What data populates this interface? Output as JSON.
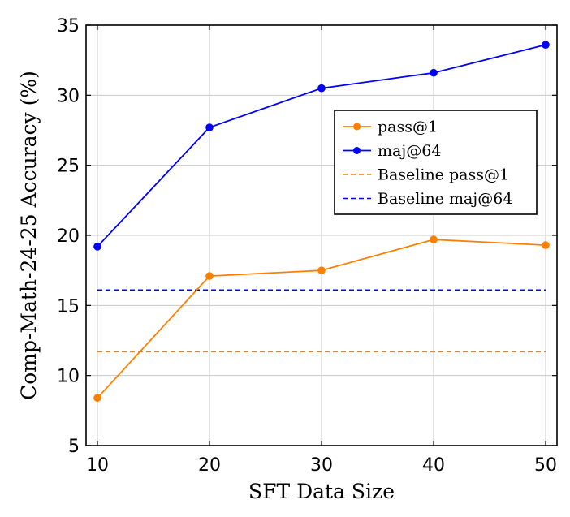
{
  "chart_data": {
    "type": "line",
    "xlabel": "SFT Data Size",
    "ylabel": "Comp-Math-24-25 Accuracy (%)",
    "xlim": [
      10,
      50
    ],
    "ylim": [
      5,
      35
    ],
    "xticks": [
      10,
      20,
      30,
      40,
      50
    ],
    "yticks": [
      5,
      10,
      15,
      20,
      25,
      30,
      35
    ],
    "grid": true,
    "legend_position": "upper-right",
    "x": [
      10,
      20,
      30,
      40,
      50
    ],
    "series": [
      {
        "name": "pass@1",
        "values": [
          8.4,
          17.1,
          17.5,
          19.7,
          19.3
        ],
        "color": "#ff8000",
        "style": "solid-marker"
      },
      {
        "name": "maj@64",
        "values": [
          19.2,
          27.7,
          30.5,
          31.6,
          33.6
        ],
        "color": "#0000ff",
        "style": "solid-marker"
      },
      {
        "name": "Baseline pass@1",
        "value": 11.7,
        "color": "#ff8000",
        "style": "dashed"
      },
      {
        "name": "Baseline maj@64",
        "value": 16.1,
        "color": "#0000ff",
        "style": "dashed"
      }
    ]
  }
}
